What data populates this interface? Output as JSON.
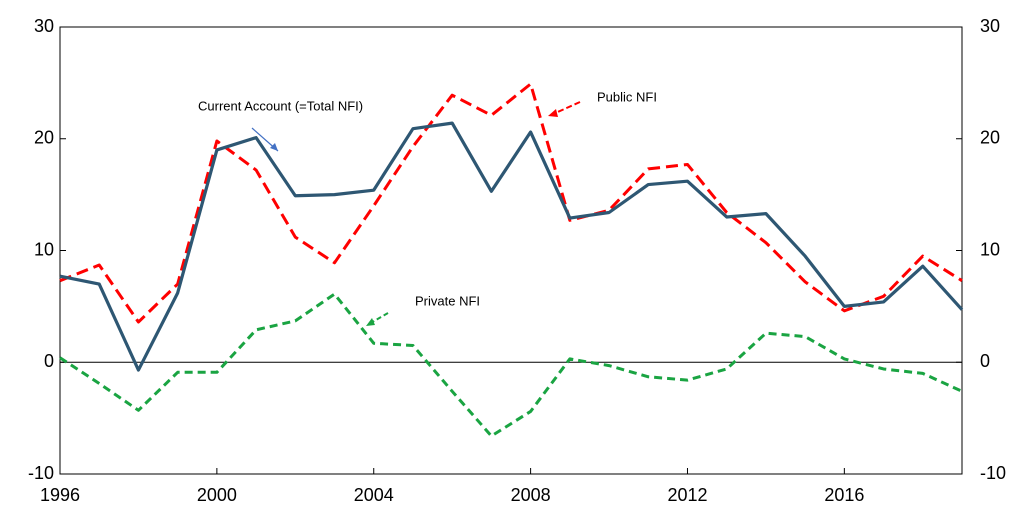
{
  "chart_data": {
    "type": "line",
    "x": [
      1996,
      1997,
      1998,
      1999,
      2000,
      2001,
      2002,
      2003,
      2004,
      2005,
      2006,
      2007,
      2008,
      2009,
      2010,
      2011,
      2012,
      2013,
      2014,
      2015,
      2016,
      2017,
      2018,
      2019
    ],
    "series": [
      {
        "name": "Current Account (=Total NFI)",
        "color": "#2e5773",
        "dash": "solid",
        "values": [
          7.7,
          7.0,
          -0.7,
          6.2,
          19.0,
          20.1,
          14.9,
          15.0,
          15.4,
          20.9,
          21.4,
          15.3,
          20.6,
          12.9,
          13.4,
          15.9,
          16.2,
          13.0,
          13.3,
          9.5,
          5.0,
          5.4,
          8.6,
          4.7
        ]
      },
      {
        "name": "Public NFI",
        "color": "#ff0000",
        "dash": "dashed",
        "values": [
          7.3,
          8.7,
          3.6,
          7.0,
          19.8,
          17.2,
          11.2,
          8.9,
          14.0,
          19.3,
          23.9,
          22.1,
          24.9,
          12.7,
          13.6,
          17.3,
          17.7,
          13.4,
          10.7,
          7.2,
          4.6,
          5.9,
          9.5,
          7.3
        ]
      },
      {
        "name": "Private NFI",
        "color": "#1aa442",
        "dash": "dashed",
        "values": [
          0.4,
          -1.9,
          -4.3,
          -0.9,
          -0.9,
          2.9,
          3.7,
          6.1,
          1.7,
          1.5,
          -2.6,
          -6.6,
          -4.4,
          0.3,
          -0.3,
          -1.3,
          -1.6,
          -0.6,
          2.6,
          2.3,
          0.3,
          -0.6,
          -1.0,
          -2.6
        ]
      }
    ],
    "xlim": [
      1996,
      2019
    ],
    "xticks": [
      1996,
      2000,
      2004,
      2008,
      2012,
      2016
    ],
    "ylim": [
      -10,
      30
    ],
    "yticks": [
      -10,
      0,
      10,
      20,
      30
    ],
    "y2lim": [
      -10,
      30
    ],
    "y2ticks": [
      -10,
      0,
      10,
      20,
      30
    ]
  }
}
